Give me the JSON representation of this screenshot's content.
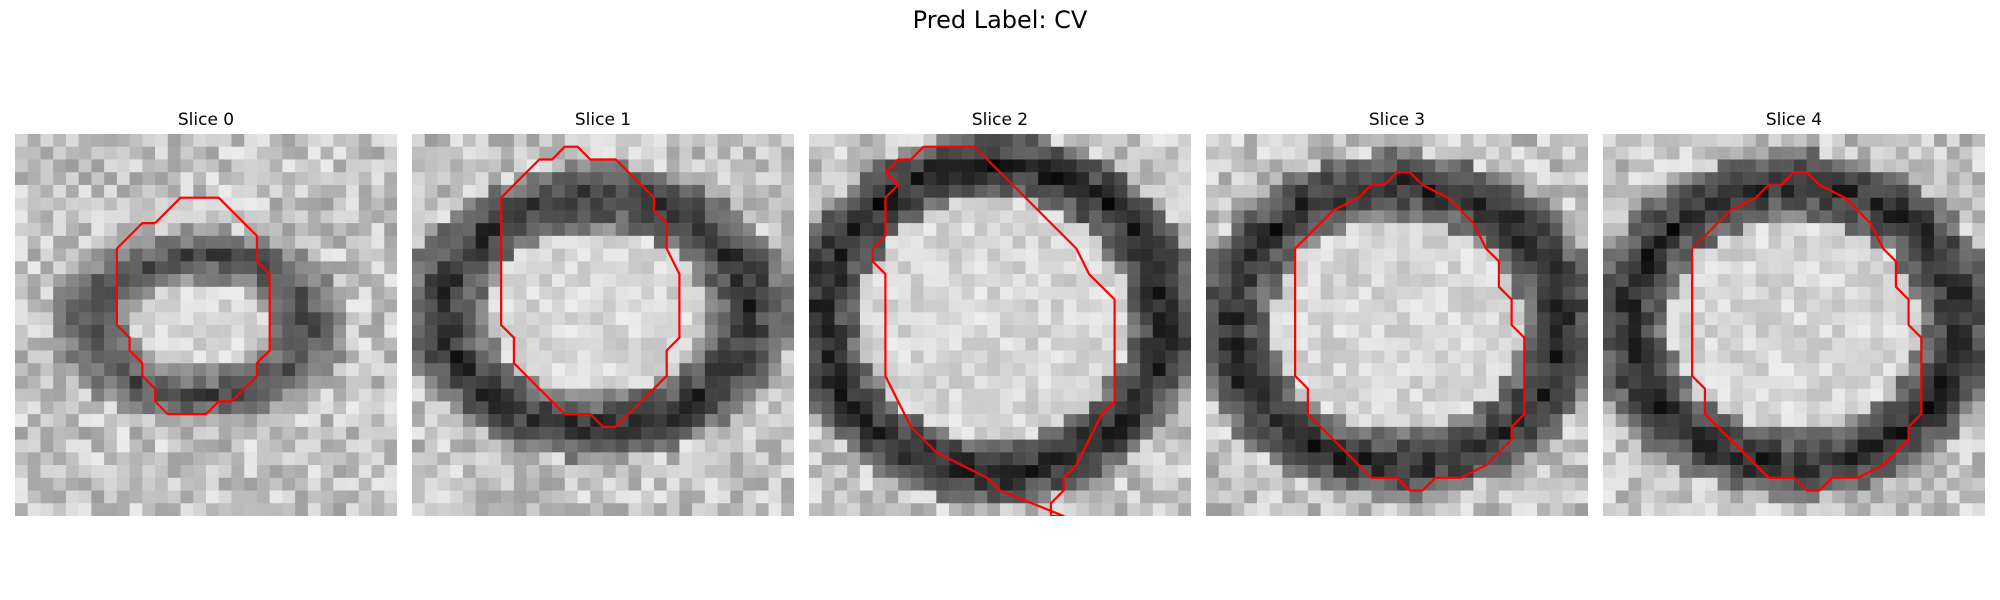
{
  "figure": {
    "title": "Pred Label: CV",
    "contour_color": "#ff0000"
  },
  "panels": [
    {
      "title": "Slice 0",
      "ring": {
        "cx": 14.5,
        "cy": 15,
        "rx": 8.5,
        "ry": 5.5,
        "thick": 2.2,
        "dark": 70
      },
      "contour": [
        [
          11,
          7
        ],
        [
          12,
          6
        ],
        [
          13,
          5
        ],
        [
          16,
          5
        ],
        [
          19,
          8
        ],
        [
          19,
          10
        ],
        [
          20,
          11
        ],
        [
          20,
          17
        ],
        [
          19,
          18
        ],
        [
          19,
          19
        ],
        [
          17,
          21
        ],
        [
          16,
          21
        ],
        [
          15,
          22
        ],
        [
          12,
          22
        ],
        [
          11,
          21
        ],
        [
          11,
          20
        ],
        [
          10,
          19
        ],
        [
          10,
          18
        ],
        [
          9,
          17
        ],
        [
          9,
          16
        ],
        [
          8,
          15
        ],
        [
          8,
          9
        ],
        [
          9,
          8
        ],
        [
          10,
          7
        ]
      ]
    },
    {
      "title": "Slice 1",
      "ring": {
        "cx": 14.5,
        "cy": 14,
        "rx": 12,
        "ry": 9,
        "thick": 2.6,
        "dark": 45
      },
      "contour": [
        [
          9,
          3
        ],
        [
          10,
          2
        ],
        [
          11,
          2
        ],
        [
          12,
          1
        ],
        [
          13,
          1
        ],
        [
          14,
          2
        ],
        [
          16,
          2
        ],
        [
          18,
          4
        ],
        [
          19,
          5
        ],
        [
          19,
          6
        ],
        [
          20,
          7
        ],
        [
          20,
          9
        ],
        [
          21,
          11
        ],
        [
          21,
          16
        ],
        [
          20,
          17
        ],
        [
          20,
          19
        ],
        [
          19,
          20
        ],
        [
          18,
          21
        ],
        [
          17,
          22
        ],
        [
          16,
          23
        ],
        [
          15,
          23
        ],
        [
          14,
          22
        ],
        [
          12,
          22
        ],
        [
          11,
          21
        ],
        [
          10,
          20
        ],
        [
          9,
          19
        ],
        [
          8,
          18
        ],
        [
          8,
          16
        ],
        [
          7,
          15
        ],
        [
          7,
          5
        ],
        [
          8,
          4
        ]
      ]
    },
    {
      "title": "Slice 2",
      "ring": {
        "cx": 14.5,
        "cy": 14.5,
        "rx": 13.5,
        "ry": 12,
        "thick": 2.6,
        "dark": 30
      },
      "contour": [
        [
          6,
          3
        ],
        [
          7,
          2
        ],
        [
          8,
          2
        ],
        [
          9,
          1
        ],
        [
          13,
          1
        ],
        [
          14,
          2
        ],
        [
          15,
          3
        ],
        [
          16,
          4
        ],
        [
          17,
          5
        ],
        [
          18,
          6
        ],
        [
          19,
          7
        ],
        [
          20,
          8
        ],
        [
          21,
          9
        ],
        [
          22,
          11
        ],
        [
          23,
          12
        ],
        [
          24,
          13
        ],
        [
          24,
          21
        ],
        [
          23,
          22
        ],
        [
          22,
          24
        ],
        [
          21,
          26
        ],
        [
          20,
          27
        ],
        [
          20,
          28
        ],
        [
          19,
          29
        ],
        [
          19,
          30
        ],
        [
          20,
          30
        ],
        [
          15,
          28
        ],
        [
          14,
          27
        ],
        [
          12,
          26
        ],
        [
          10,
          25
        ],
        [
          8,
          23
        ],
        [
          7,
          21
        ],
        [
          6,
          19
        ],
        [
          6,
          11
        ],
        [
          5,
          10
        ],
        [
          5,
          9
        ],
        [
          6,
          8
        ],
        [
          6,
          5
        ],
        [
          7,
          4
        ]
      ]
    },
    {
      "title": "Slice 3",
      "ring": {
        "cx": 15,
        "cy": 15,
        "rx": 13,
        "ry": 11,
        "thick": 2.6,
        "dark": 35
      },
      "contour": [
        [
          9,
          7
        ],
        [
          10,
          6
        ],
        [
          12,
          5
        ],
        [
          13,
          4
        ],
        [
          14,
          4
        ],
        [
          15,
          3
        ],
        [
          16,
          3
        ],
        [
          17,
          4
        ],
        [
          19,
          5
        ],
        [
          20,
          6
        ],
        [
          21,
          7
        ],
        [
          22,
          9
        ],
        [
          23,
          10
        ],
        [
          23,
          12
        ],
        [
          24,
          13
        ],
        [
          24,
          15
        ],
        [
          25,
          16
        ],
        [
          25,
          22
        ],
        [
          24,
          23
        ],
        [
          24,
          24
        ],
        [
          23,
          25
        ],
        [
          22,
          26
        ],
        [
          20,
          27
        ],
        [
          18,
          27
        ],
        [
          17,
          28
        ],
        [
          16,
          28
        ],
        [
          15,
          27
        ],
        [
          13,
          27
        ],
        [
          12,
          26
        ],
        [
          11,
          25
        ],
        [
          10,
          24
        ],
        [
          9,
          23
        ],
        [
          8,
          22
        ],
        [
          8,
          20
        ],
        [
          7,
          19
        ],
        [
          7,
          9
        ],
        [
          8,
          8
        ]
      ]
    },
    {
      "title": "Slice 4",
      "ring": {
        "cx": 15,
        "cy": 15,
        "rx": 13,
        "ry": 11,
        "thick": 2.6,
        "dark": 35
      },
      "contour": [
        [
          9,
          7
        ],
        [
          10,
          6
        ],
        [
          12,
          5
        ],
        [
          13,
          4
        ],
        [
          14,
          4
        ],
        [
          15,
          3
        ],
        [
          16,
          3
        ],
        [
          17,
          4
        ],
        [
          19,
          5
        ],
        [
          20,
          6
        ],
        [
          21,
          7
        ],
        [
          22,
          9
        ],
        [
          23,
          10
        ],
        [
          23,
          12
        ],
        [
          24,
          13
        ],
        [
          24,
          15
        ],
        [
          25,
          16
        ],
        [
          25,
          22
        ],
        [
          24,
          23
        ],
        [
          24,
          24
        ],
        [
          23,
          25
        ],
        [
          22,
          26
        ],
        [
          20,
          27
        ],
        [
          18,
          27
        ],
        [
          17,
          28
        ],
        [
          16,
          28
        ],
        [
          15,
          27
        ],
        [
          13,
          27
        ],
        [
          12,
          26
        ],
        [
          11,
          25
        ],
        [
          10,
          24
        ],
        [
          9,
          23
        ],
        [
          8,
          22
        ],
        [
          8,
          20
        ],
        [
          7,
          19
        ],
        [
          7,
          9
        ],
        [
          8,
          8
        ]
      ]
    }
  ]
}
